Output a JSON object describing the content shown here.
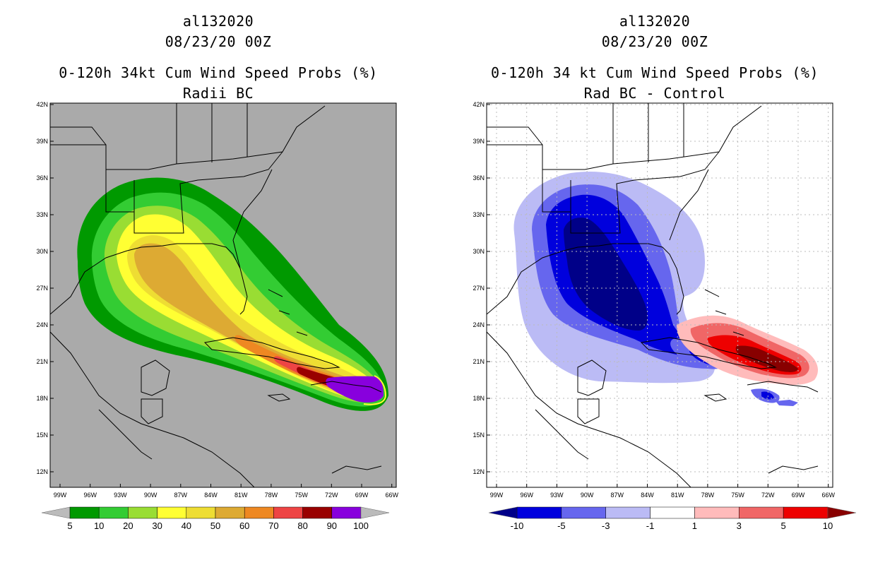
{
  "left": {
    "storm_id": "al132020",
    "datetime": "08/23/20 00Z",
    "title": "0-120h 34kt Cum Wind Speed Probs (%)",
    "subtitle": "Radii BC",
    "lat_ticks": [
      "42N",
      "39N",
      "36N",
      "33N",
      "30N",
      "27N",
      "24N",
      "21N",
      "18N",
      "15N",
      "12N"
    ],
    "lon_ticks": [
      "99W",
      "96W",
      "93W",
      "90W",
      "87W",
      "84W",
      "81W",
      "78W",
      "75W",
      "72W",
      "69W",
      "66W"
    ],
    "colorbar": {
      "colors": [
        "#009900",
        "#33cc33",
        "#99dd33",
        "#ffff33",
        "#eedd33",
        "#ddaa33",
        "#ee8822",
        "#ee4444",
        "#990000",
        "#8800dd"
      ],
      "end_colors": [
        "#bbbbbb",
        "#bbbbbb"
      ],
      "labels": [
        "5",
        "10",
        "20",
        "30",
        "40",
        "50",
        "60",
        "70",
        "80",
        "90",
        "100"
      ]
    }
  },
  "right": {
    "storm_id": "al132020",
    "datetime": "08/23/20 00Z",
    "title": "0-120h 34 kt Cum Wind Speed Probs (%)",
    "subtitle": "Rad BC - Control",
    "lat_ticks": [
      "42N",
      "39N",
      "36N",
      "33N",
      "30N",
      "27N",
      "24N",
      "21N",
      "18N",
      "15N",
      "12N"
    ],
    "lon_ticks": [
      "99W",
      "96W",
      "93W",
      "90W",
      "87W",
      "84W",
      "81W",
      "78W",
      "75W",
      "72W",
      "69W",
      "66W"
    ],
    "colorbar": {
      "colors": [
        "#0000dd",
        "#6666ee",
        "#bbbbf5",
        "#ffffff",
        "#ffbbbb",
        "#f06666",
        "#ee0000"
      ],
      "end_colors": [
        "#000088",
        "#880000"
      ],
      "labels": [
        "-10",
        "-5",
        "-3",
        "-1",
        "1",
        "3",
        "5",
        "10"
      ]
    }
  },
  "colors": {
    "land_bg_left": "#aaaaaa",
    "map_bg_right": "#ffffff"
  }
}
